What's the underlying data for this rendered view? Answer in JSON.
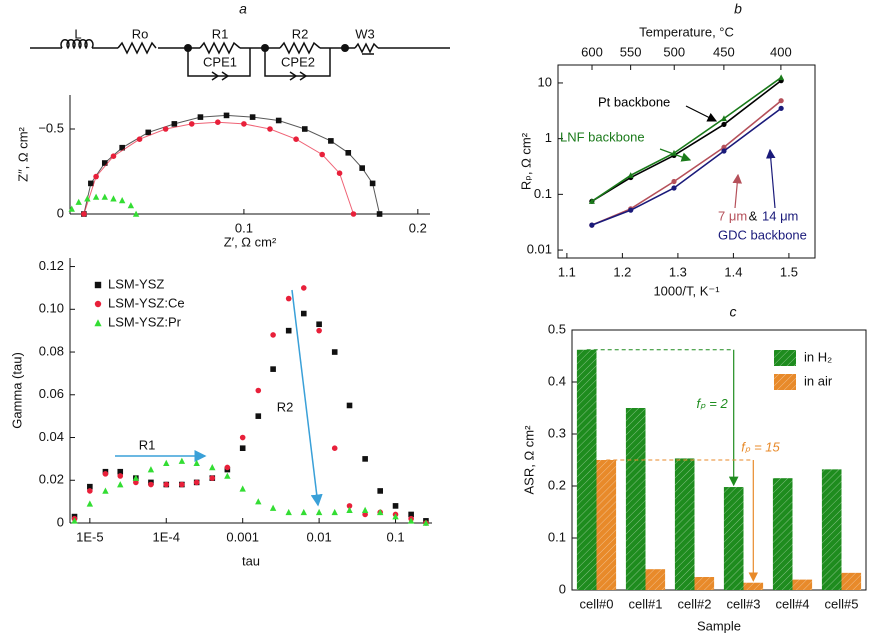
{
  "panel_labels": [
    "a",
    "b",
    "c"
  ],
  "circuit": {
    "labels": [
      "L",
      "Ro",
      "R1",
      "R2",
      "W3",
      "CPE1",
      "CPE2"
    ]
  },
  "chart_data": [
    {
      "type": "scatter",
      "xlabel": "Z′, Ω cm²",
      "ylabel": "Z″, Ω cm²",
      "xlim": [
        0,
        0.207
      ],
      "ylim": [
        0,
        -0.7
      ],
      "xticks": [
        0.1,
        0.2
      ],
      "yticks": [
        0,
        {
          "value": -0.5,
          "label": "−0.5"
        }
      ],
      "series": [
        {
          "color": "#111111",
          "marker": "square",
          "line": true,
          "x": [
            0.008,
            0.012,
            0.02,
            0.03,
            0.045,
            0.06,
            0.075,
            0.09,
            0.105,
            0.12,
            0.135,
            0.15,
            0.16,
            0.168,
            0.174,
            0.178
          ],
          "values": [
            0,
            -0.18,
            -0.3,
            -0.39,
            -0.48,
            -0.53,
            -0.57,
            -0.58,
            -0.57,
            -0.55,
            -0.5,
            -0.43,
            -0.36,
            -0.27,
            -0.18,
            0
          ]
        },
        {
          "color": "#e8203a",
          "marker": "circle",
          "line": true,
          "x": [
            0.008,
            0.015,
            0.025,
            0.04,
            0.055,
            0.07,
            0.085,
            0.1,
            0.115,
            0.13,
            0.145,
            0.155,
            0.163
          ],
          "values": [
            0,
            -0.22,
            -0.34,
            -0.44,
            -0.5,
            -0.53,
            -0.54,
            -0.53,
            -0.5,
            -0.44,
            -0.35,
            -0.24,
            0
          ]
        },
        {
          "color": "#33dd33",
          "marker": "triangle",
          "line": false,
          "x": [
            0.001,
            0.005,
            0.01,
            0.015,
            0.02,
            0.025,
            0.03,
            0.035,
            0.038
          ],
          "values": [
            -0.03,
            -0.07,
            -0.09,
            -0.1,
            -0.1,
            -0.09,
            -0.08,
            -0.05,
            0
          ]
        }
      ]
    },
    {
      "type": "scatter",
      "xlabel": "tau",
      "ylabel": "Gamma (tau)",
      "xscale": "log",
      "xlim": [
        5.5e-06,
        0.3
      ],
      "ylim": [
        0,
        0.124
      ],
      "xticks": [
        {
          "value": 1e-05,
          "label": "1E-5"
        },
        {
          "value": 0.0001,
          "label": "1E-4"
        },
        0.001,
        0.01,
        0.1
      ],
      "yticks": [
        0,
        0.02,
        0.04,
        0.06,
        0.08,
        {
          "value": 0.1,
          "label": "0.10"
        },
        0.12
      ],
      "legend": "upper left",
      "annotations": [
        "R1",
        "R2"
      ],
      "series": [
        {
          "name": "LSM-YSZ",
          "color": "#111111",
          "marker": "square",
          "line": false,
          "x": [
            6.3e-06,
            1e-05,
            1.6e-05,
            2.5e-05,
            4e-05,
            6.3e-05,
            0.0001,
            0.00016,
            0.00025,
            0.0004,
            0.00063,
            0.001,
            0.0016,
            0.0025,
            0.004,
            0.0063,
            0.01,
            0.016,
            0.025,
            0.04,
            0.063,
            0.1,
            0.16,
            0.25
          ],
          "values": [
            0.003,
            0.017,
            0.024,
            0.024,
            0.021,
            0.019,
            0.018,
            0.018,
            0.019,
            0.021,
            0.025,
            0.035,
            0.05,
            0.072,
            0.09,
            0.098,
            0.093,
            0.08,
            0.055,
            0.03,
            0.015,
            0.008,
            0.004,
            0.001
          ]
        },
        {
          "name": "LSM-YSZ:Ce",
          "color": "#e8203a",
          "marker": "circle",
          "line": false,
          "x": [
            6.3e-06,
            1e-05,
            1.6e-05,
            2.5e-05,
            4e-05,
            6.3e-05,
            0.0001,
            0.00016,
            0.00025,
            0.0004,
            0.00063,
            0.001,
            0.0016,
            0.0025,
            0.004,
            0.0063,
            0.01,
            0.016,
            0.025,
            0.04,
            0.063,
            0.1,
            0.16,
            0.25
          ],
          "values": [
            0.002,
            0.015,
            0.023,
            0.022,
            0.019,
            0.018,
            0.018,
            0.018,
            0.019,
            0.021,
            0.026,
            0.04,
            0.062,
            0.088,
            0.105,
            0.11,
            0.09,
            0.035,
            0.008,
            0.004,
            0.005,
            0.004,
            0.002,
            0
          ]
        },
        {
          "name": "LSM-YSZ:Pr",
          "color": "#33dd33",
          "marker": "triangle",
          "line": false,
          "x": [
            6.3e-06,
            1e-05,
            1.6e-05,
            2.5e-05,
            4e-05,
            6.3e-05,
            0.0001,
            0.00016,
            0.00025,
            0.0004,
            0.00063,
            0.001,
            0.0016,
            0.0025,
            0.004,
            0.0063,
            0.01,
            0.016,
            0.025,
            0.04,
            0.063,
            0.1,
            0.16,
            0.25
          ],
          "values": [
            0.001,
            0.009,
            0.015,
            0.018,
            0.021,
            0.025,
            0.028,
            0.029,
            0.028,
            0.026,
            0.022,
            0.016,
            0.01,
            0.007,
            0.005,
            0.005,
            0.005,
            0.005,
            0.006,
            0.006,
            0.005,
            0.003,
            0.001,
            0
          ]
        }
      ]
    },
    {
      "type": "line",
      "xlabel": "1000/T, K⁻¹",
      "ylabel": "Rₚ, Ω cm²",
      "yscale": "log",
      "x2label": "Temperature, °C",
      "x2ticks": [
        600,
        550,
        500,
        450,
        400
      ],
      "xlim": [
        1.084,
        1.547
      ],
      "ylim": [
        0.0072,
        21
      ],
      "xticks": [
        1.1,
        1.2,
        1.3,
        1.4,
        1.5
      ],
      "yticks": [
        0.01,
        0.1,
        1,
        10
      ],
      "annotations": [
        "&",
        "GDC backbone"
      ],
      "series": [
        {
          "name": "Pt backbone",
          "color": "#000000",
          "marker": "circle",
          "line": true,
          "x": [
            1.145,
            1.215,
            1.293,
            1.383,
            1.486
          ],
          "values": [
            0.075,
            0.2,
            0.5,
            1.8,
            11
          ]
        },
        {
          "name": "LNF backbone",
          "color": "#1a7a1a",
          "marker": "triangle",
          "line": true,
          "x": [
            1.145,
            1.215,
            1.293,
            1.383,
            1.486
          ],
          "values": [
            0.075,
            0.22,
            0.55,
            2.3,
            12.5
          ]
        },
        {
          "name": "7 μm",
          "color": "#b5505a",
          "marker": "circle",
          "line": true,
          "x": [
            1.145,
            1.215,
            1.293,
            1.383,
            1.486
          ],
          "values": [
            0.028,
            0.055,
            0.17,
            0.7,
            4.8
          ]
        },
        {
          "name": "14 μm",
          "color": "#1a1a7a",
          "marker": "circle",
          "line": true,
          "x": [
            1.145,
            1.215,
            1.293,
            1.383,
            1.486
          ],
          "values": [
            0.028,
            0.052,
            0.13,
            0.6,
            3.5
          ]
        }
      ]
    },
    {
      "type": "bar",
      "xlabel": "Sample",
      "ylabel": "ASR, Ω cm²",
      "categories": [
        "cell#0",
        "cell#1",
        "cell#2",
        "cell#3",
        "cell#4",
        "cell#5"
      ],
      "ylim": [
        0,
        0.5
      ],
      "yticks": [
        0,
        0.1,
        0.2,
        0.3,
        0.4,
        0.5
      ],
      "legend": "upper right",
      "annotations": [
        "fₚ = 2",
        "fₚ = 15"
      ],
      "series": [
        {
          "name": "in H₂",
          "color": "#1e8c1e",
          "hatch": true,
          "values": [
            0.462,
            0.35,
            0.253,
            0.198,
            0.215,
            0.232
          ]
        },
        {
          "name": "in air",
          "color": "#e88a2a",
          "hatch": true,
          "values": [
            0.25,
            0.04,
            0.025,
            0.014,
            0.02,
            0.033
          ]
        }
      ]
    }
  ]
}
